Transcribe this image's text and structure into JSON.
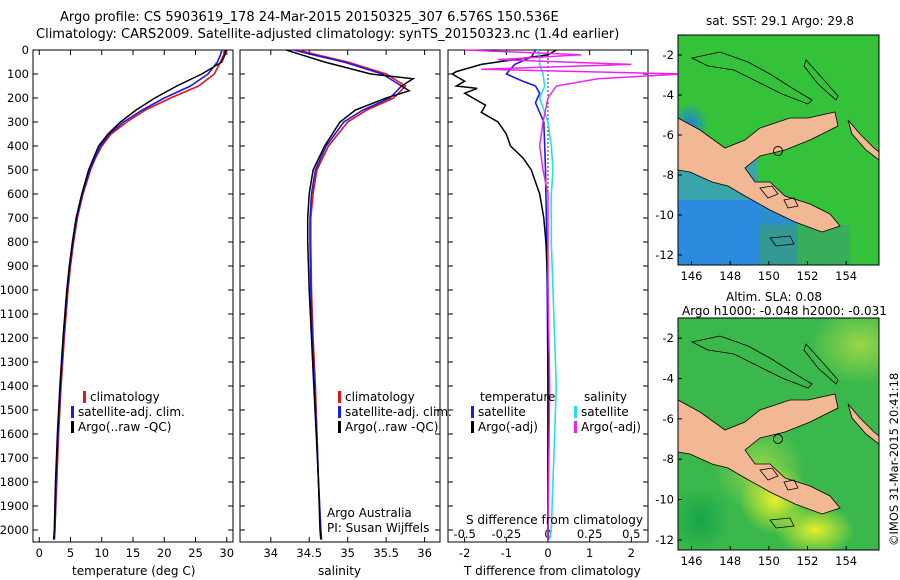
{
  "header": {
    "title_line1": "Argo profile: CS 5903619_178 24-Mar-2015 20150325_307 6.576S 150.536E",
    "title_line2": "Climatology: CARS2009. Satellite-adjusted climatology: synTS_20150323.nc (1.4d earlier)"
  },
  "colors": {
    "climatology": "#ee1111",
    "satellite": "#1a1aee",
    "argo": "#000000",
    "sat_salinity": "#22e0ee",
    "argo_salinity": "#ee22ee",
    "land": "#f2b894",
    "sea_green": "#33c23a"
  },
  "legend_left": {
    "items": [
      "climatology",
      "satellite-adj. clim.",
      "Argo(..raw -QC)"
    ]
  },
  "legend_diff": {
    "temperature_head": "temperature",
    "salinity_head": "salinity",
    "t_items": [
      "satellite",
      "Argo(-adj)"
    ],
    "s_items": [
      "satellite",
      "Argo(-adj)"
    ]
  },
  "notes": {
    "institution": "Argo Australia",
    "pi": "PI: Susan Wijffels"
  },
  "map_top": {
    "title": "sat. SST: 29.1  Argo: 29.8"
  },
  "map_bottom": {
    "title_line1": "Altim. SLA: 0.08",
    "title_line2": "Argo h1000: -0.048  h2000: -0.031"
  },
  "side_stamp": "©IMOS 31-Mar-2015 20:41:18",
  "chart_data": [
    {
      "type": "line",
      "name": "temperature",
      "xlabel": "temperature (deg C)",
      "ylabel": "",
      "xlim": [
        -1,
        31
      ],
      "ylim": [
        2050,
        0
      ],
      "x_ticks": [
        0,
        5,
        10,
        15,
        20,
        25,
        30
      ],
      "y_ticks": [
        0,
        100,
        200,
        300,
        400,
        500,
        600,
        700,
        800,
        900,
        1000,
        1100,
        1200,
        1300,
        1400,
        1500,
        1600,
        1700,
        1800,
        1900,
        2000
      ],
      "series": [
        {
          "name": "climatology",
          "depth": [
            0,
            20,
            50,
            100,
            150,
            200,
            250,
            300,
            350,
            400,
            450,
            500,
            600,
            700,
            800,
            900,
            1000,
            1200,
            1400,
            1600,
            1800,
            2000,
            2040
          ],
          "values": [
            29.6,
            29.5,
            29.0,
            28.0,
            25.5,
            21.0,
            17.0,
            14.0,
            11.5,
            10.0,
            9.0,
            8.2,
            7.0,
            6.1,
            5.5,
            5.0,
            4.6,
            4.0,
            3.5,
            3.1,
            2.8,
            2.5,
            2.4
          ]
        },
        {
          "name": "satellite-adj. clim.",
          "depth": [
            0,
            20,
            50,
            100,
            150,
            200,
            250,
            300,
            350,
            400,
            450,
            500,
            600,
            700,
            800,
            900,
            1000,
            1200,
            1400,
            1600,
            1800,
            2000,
            2040
          ],
          "values": [
            29.2,
            29.0,
            28.5,
            27.0,
            24.2,
            20.0,
            16.5,
            13.5,
            11.2,
            9.8,
            8.9,
            8.1,
            6.9,
            6.0,
            5.4,
            4.9,
            4.5,
            3.9,
            3.4,
            3.0,
            2.7,
            2.5,
            2.4
          ]
        },
        {
          "name": "Argo(..raw -QC)",
          "depth": [
            0,
            20,
            50,
            100,
            150,
            200,
            250,
            300,
            350,
            400,
            450,
            500,
            600,
            700,
            800,
            900,
            1000,
            1200,
            1400,
            1600,
            1800,
            2000,
            2040
          ],
          "values": [
            29.8,
            29.7,
            29.2,
            26.0,
            22.0,
            18.5,
            15.5,
            13.0,
            11.0,
            9.5,
            8.7,
            7.9,
            6.8,
            5.9,
            5.3,
            4.8,
            4.4,
            3.8,
            3.3,
            2.9,
            2.6,
            2.4,
            2.3
          ]
        }
      ]
    },
    {
      "type": "line",
      "name": "salinity",
      "xlabel": "salinity",
      "ylabel": "",
      "xlim": [
        33.6,
        36.2
      ],
      "ylim": [
        2050,
        0
      ],
      "x_ticks": [
        34,
        34.5,
        35,
        35.5,
        36
      ],
      "series": [
        {
          "name": "climatology",
          "depth": [
            0,
            20,
            50,
            100,
            150,
            200,
            250,
            300,
            400,
            500,
            600,
            700,
            800,
            1000,
            1200,
            1400,
            1600,
            1800,
            2000,
            2040
          ],
          "values": [
            34.35,
            34.6,
            35.0,
            35.5,
            35.75,
            35.6,
            35.25,
            35.0,
            34.75,
            34.6,
            34.55,
            34.52,
            34.52,
            34.53,
            34.55,
            34.58,
            34.6,
            34.62,
            34.65,
            34.66
          ]
        },
        {
          "name": "satellite-adj. clim.",
          "depth": [
            0,
            20,
            50,
            100,
            150,
            200,
            250,
            300,
            400,
            500,
            600,
            700,
            800,
            1000,
            1200,
            1400,
            1600,
            1800,
            2000,
            2040
          ],
          "values": [
            34.3,
            34.55,
            34.95,
            35.45,
            35.7,
            35.55,
            35.2,
            34.95,
            34.72,
            34.58,
            34.53,
            34.51,
            34.51,
            34.52,
            34.54,
            34.57,
            34.6,
            34.62,
            34.65,
            34.66
          ]
        },
        {
          "name": "Argo(..raw -QC)",
          "depth": [
            0,
            20,
            50,
            100,
            120,
            150,
            170,
            200,
            250,
            300,
            400,
            500,
            600,
            700,
            800,
            1000,
            1200,
            1400,
            1600,
            1800,
            2000,
            2040
          ],
          "values": [
            34.2,
            34.4,
            34.7,
            35.3,
            35.85,
            35.7,
            35.8,
            35.5,
            35.1,
            34.9,
            34.7,
            34.55,
            34.5,
            34.48,
            34.48,
            34.5,
            34.53,
            34.56,
            34.59,
            34.62,
            34.64,
            34.65
          ]
        }
      ]
    },
    {
      "type": "line",
      "name": "difference",
      "xlabel": "T difference from climatology",
      "x2label": "S difference from climatology",
      "xlim": [
        -2.4,
        2.4
      ],
      "ylim": [
        2050,
        0
      ],
      "x_ticks": [
        -2,
        -1,
        0,
        1,
        2
      ],
      "x2_ticks": [
        -0.5,
        -0.25,
        0,
        0.25,
        0.5
      ],
      "x2_ticklabels": [
        "-0.5",
        "-0.25",
        "0",
        "0.25",
        "0.5"
      ],
      "series": [
        {
          "name": "T satellite",
          "depth": [
            0,
            30,
            60,
            100,
            130,
            150,
            180,
            220,
            260,
            300,
            400,
            500,
            600,
            800,
            1000,
            1400,
            2000,
            2040
          ],
          "values": [
            -0.3,
            -0.4,
            -0.8,
            -1.0,
            -0.6,
            -0.3,
            -0.2,
            -0.3,
            -0.2,
            -0.1,
            -0.08,
            -0.06,
            -0.05,
            -0.03,
            -0.02,
            0.0,
            0.0,
            0.0
          ]
        },
        {
          "name": "T Argo(-adj)",
          "depth": [
            0,
            20,
            60,
            90,
            100,
            130,
            150,
            160,
            180,
            200,
            230,
            260,
            300,
            350,
            400,
            450,
            500,
            600,
            700,
            800,
            1000,
            1400,
            2000,
            2040
          ],
          "values": [
            0.2,
            0.0,
            -1.6,
            -2.2,
            -2.3,
            -2.0,
            -2.2,
            -1.7,
            -2.0,
            -1.8,
            -1.5,
            -1.6,
            -1.2,
            -1.0,
            -0.9,
            -0.6,
            -0.4,
            -0.2,
            -0.1,
            -0.05,
            0.0,
            0.0,
            0.0,
            0.0
          ]
        },
        {
          "name": "S satellite",
          "depth": [
            0,
            30,
            60,
            100,
            150,
            200,
            300,
            400,
            500,
            600,
            800,
            1000,
            1400,
            2000,
            2040
          ],
          "values": [
            -0.06,
            -0.05,
            -0.05,
            -0.03,
            -0.02,
            -0.05,
            0.0,
            0.02,
            0.03,
            0.02,
            0.02,
            0.03,
            0.05,
            0.02,
            0.01
          ]
        },
        {
          "name": "S Argo(-adj)",
          "depth": [
            0,
            20,
            40,
            60,
            80,
            100,
            120,
            150,
            200,
            300,
            400,
            500,
            600,
            800,
            1000,
            1400,
            2000,
            2040
          ],
          "values": [
            -0.5,
            0.2,
            -0.3,
            0.5,
            -0.4,
            0.8,
            0.3,
            0.05,
            0.0,
            -0.03,
            -0.05,
            -0.03,
            0.0,
            0.0,
            0.0,
            0.01,
            0.0,
            0.0
          ]
        }
      ]
    },
    {
      "type": "heatmap",
      "name": "map-sst",
      "title": "sat. SST: 29.1  Argo: 29.8",
      "xlim": [
        145.3,
        155.7
      ],
      "ylim": [
        -12.5,
        -1.0
      ],
      "x_ticks": [
        146,
        148,
        150,
        152,
        154
      ],
      "y_ticks": [
        -2,
        -4,
        -6,
        -8,
        -10,
        -12
      ],
      "float_position": [
        150.536,
        -6.576
      ]
    },
    {
      "type": "heatmap",
      "name": "map-sla",
      "title": "Altim. SLA: 0.08",
      "xlim": [
        145.3,
        155.7
      ],
      "ylim": [
        -12.5,
        -1.0
      ],
      "x_ticks": [
        146,
        148,
        150,
        152,
        154
      ],
      "y_ticks": [
        -2,
        -4,
        -6,
        -8,
        -10,
        -12
      ],
      "float_position": [
        150.536,
        -6.576
      ]
    }
  ]
}
